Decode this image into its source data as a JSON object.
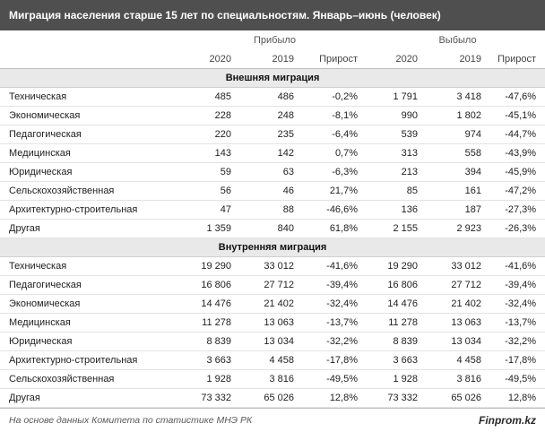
{
  "colors": {
    "title_band": "#4f4f4f",
    "section_band": "#e9e9e9"
  },
  "chart_data": {
    "type": "table",
    "title": "Миграция населения старше 15 лет по специальностям. Январь–июнь (человек)",
    "column_groups": [
      "Прибыло",
      "Выбыло"
    ],
    "columns": [
      "2020",
      "2019",
      "Прирост",
      "2020",
      "2019",
      "Прирост"
    ],
    "sections": [
      {
        "label": "Внешняя миграция",
        "rows": [
          {
            "label": "Техническая",
            "values": [
              "485",
              "486",
              "-0,2%",
              "1 791",
              "3 418",
              "-47,6%"
            ]
          },
          {
            "label": "Экономическая",
            "values": [
              "228",
              "248",
              "-8,1%",
              "990",
              "1 802",
              "-45,1%"
            ]
          },
          {
            "label": "Педагогическая",
            "values": [
              "220",
              "235",
              "-6,4%",
              "539",
              "974",
              "-44,7%"
            ]
          },
          {
            "label": "Медицинская",
            "values": [
              "143",
              "142",
              "0,7%",
              "313",
              "558",
              "-43,9%"
            ]
          },
          {
            "label": "Юридическая",
            "values": [
              "59",
              "63",
              "-6,3%",
              "213",
              "394",
              "-45,9%"
            ]
          },
          {
            "label": "Сельскохозяйственная",
            "values": [
              "56",
              "46",
              "21,7%",
              "85",
              "161",
              "-47,2%"
            ]
          },
          {
            "label": "Архитектурно-строительная",
            "values": [
              "47",
              "88",
              "-46,6%",
              "136",
              "187",
              "-27,3%"
            ]
          },
          {
            "label": "Другая",
            "values": [
              "1 359",
              "840",
              "61,8%",
              "2 155",
              "2 923",
              "-26,3%"
            ]
          }
        ]
      },
      {
        "label": "Внутренняя миграция",
        "rows": [
          {
            "label": "Техническая",
            "values": [
              "19 290",
              "33 012",
              "-41,6%",
              "19 290",
              "33 012",
              "-41,6%"
            ]
          },
          {
            "label": "Педагогическая",
            "values": [
              "16 806",
              "27 712",
              "-39,4%",
              "16 806",
              "27 712",
              "-39,4%"
            ]
          },
          {
            "label": "Экономическая",
            "values": [
              "14 476",
              "21 402",
              "-32,4%",
              "14 476",
              "21 402",
              "-32,4%"
            ]
          },
          {
            "label": "Медицинская",
            "values": [
              "11 278",
              "13 063",
              "-13,7%",
              "11 278",
              "13 063",
              "-13,7%"
            ]
          },
          {
            "label": "Юридическая",
            "values": [
              "8 839",
              "13 034",
              "-32,2%",
              "8 839",
              "13 034",
              "-32,2%"
            ]
          },
          {
            "label": "Архитектурно-строительная",
            "values": [
              "3 663",
              "4 458",
              "-17,8%",
              "3 663",
              "4 458",
              "-17,8%"
            ]
          },
          {
            "label": "Сельскохозяйственная",
            "values": [
              "1 928",
              "3 816",
              "-49,5%",
              "1 928",
              "3 816",
              "-49,5%"
            ]
          },
          {
            "label": "Другая",
            "values": [
              "73 332",
              "65 026",
              "12,8%",
              "73 332",
              "65 026",
              "12,8%"
            ]
          }
        ]
      }
    ]
  },
  "footer": {
    "source": "На основе данных Комитета по статистике МНЭ РК",
    "brand": "Finprom.kz"
  }
}
